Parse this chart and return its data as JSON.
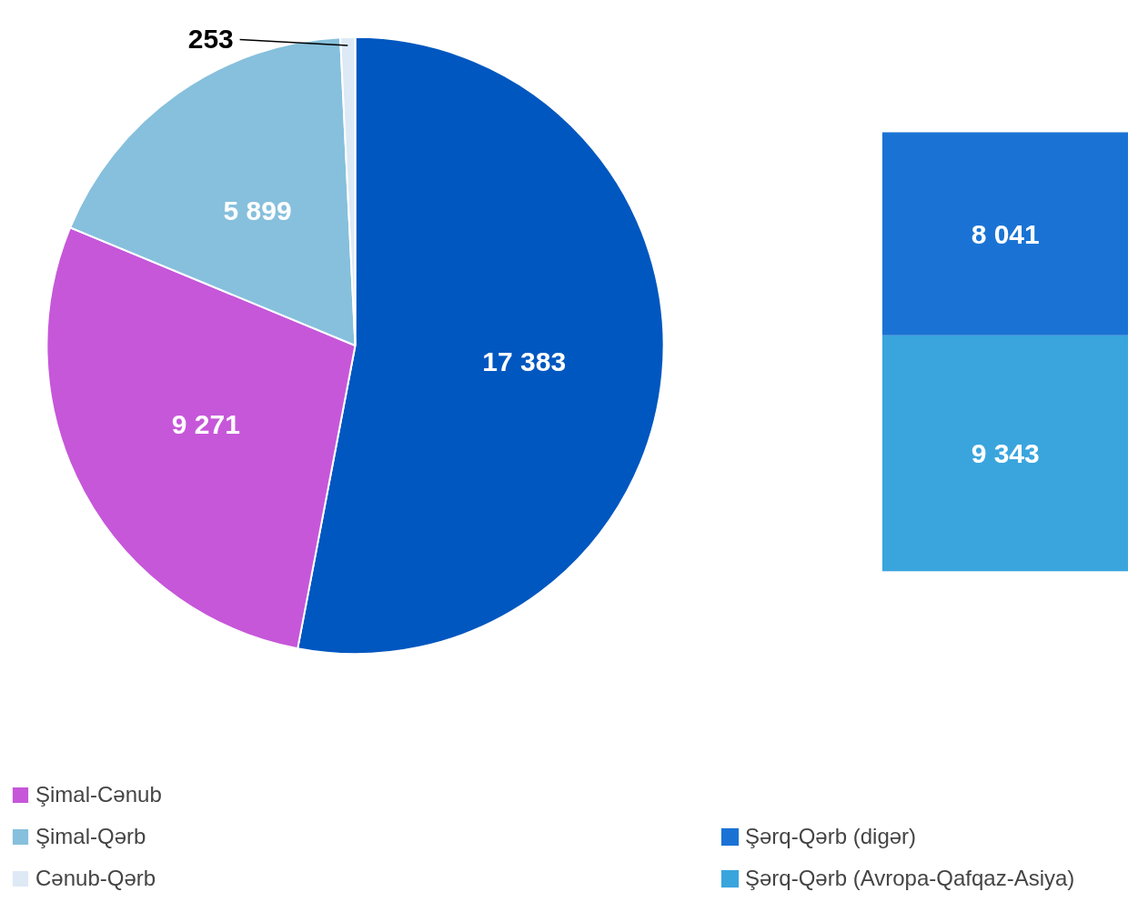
{
  "chart_data": [
    {
      "type": "pie",
      "categories": [
        null,
        "Şimal-Cənub",
        "Şimal-Qərb",
        "Cənub-Qərb"
      ],
      "values": [
        17383,
        9271,
        5899,
        253
      ],
      "colors": [
        "#0057c0",
        "#c657d9",
        "#86c0dc",
        "#dde9f5"
      ],
      "data_labels": true,
      "legend": "bottom"
    },
    {
      "type": "bar",
      "categories": [
        null
      ],
      "stacked": true,
      "data_labels": true,
      "legend": "bottom",
      "tick_labels": false,
      "series": [
        {
          "name": "Şərq-Qərb (Avropa-Qafqaz-Asiya)",
          "color": "#3aa5dd",
          "values": [
            9343
          ]
        },
        {
          "name": "Şərq-Qərb (digər)",
          "color": "#1a73d4",
          "values": [
            8041
          ]
        }
      ]
    }
  ]
}
